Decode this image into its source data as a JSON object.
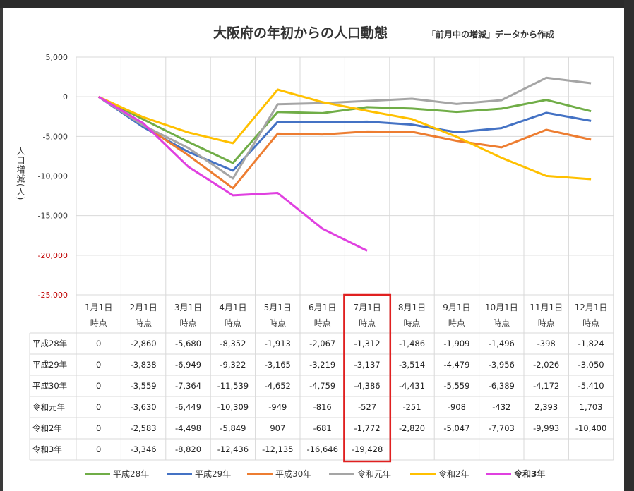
{
  "chart_data": {
    "type": "line",
    "title": "大阪府の年初からの人口動態",
    "subtitle": "「前月中の増減」データから作成",
    "ylabel": "人口増減(人)",
    "xlabel": "",
    "ylim": [
      -25000,
      5000
    ],
    "y_ticks": [
      "5,000",
      "0",
      "-5,000",
      "-10,000",
      "-15,000",
      "-20,000",
      "-25,000"
    ],
    "y_tick_values": [
      5000,
      0,
      -5000,
      -10000,
      -15000,
      -20000,
      -25000
    ],
    "categories": [
      [
        "1月1日",
        "時点"
      ],
      [
        "2月1日",
        "時点"
      ],
      [
        "3月1日",
        "時点"
      ],
      [
        "4月1日",
        "時点"
      ],
      [
        "5月1日",
        "時点"
      ],
      [
        "6月1日",
        "時点"
      ],
      [
        "7月1日",
        "時点"
      ],
      [
        "8月1日",
        "時点"
      ],
      [
        "9月1日",
        "時点"
      ],
      [
        "10月1日",
        "時点"
      ],
      [
        "11月1日",
        "時点"
      ],
      [
        "12月1日",
        "時点"
      ]
    ],
    "grid": true,
    "legend_position": "bottom",
    "highlight_column": 6,
    "highlight_color": "#e02020",
    "series": [
      {
        "name": "平成28年",
        "color": "#70ad47",
        "bold": false,
        "values": [
          0,
          -2860,
          -5680,
          -8352,
          -1913,
          -2067,
          -1312,
          -1486,
          -1909,
          -1496,
          -398,
          -1824
        ],
        "labels": [
          "0",
          "-2,860",
          "-5,680",
          "-8,352",
          "-1,913",
          "-2,067",
          "-1,312",
          "-1,486",
          "-1,909",
          "-1,496",
          "-398",
          "-1,824"
        ]
      },
      {
        "name": "平成29年",
        "color": "#4472c4",
        "bold": false,
        "values": [
          0,
          -3838,
          -6949,
          -9322,
          -3165,
          -3219,
          -3137,
          -3514,
          -4479,
          -3956,
          -2026,
          -3050
        ],
        "labels": [
          "0",
          "-3,838",
          "-6,949",
          "-9,322",
          "-3,165",
          "-3,219",
          "-3,137",
          "-3,514",
          "-4,479",
          "-3,956",
          "-2,026",
          "-3,050"
        ]
      },
      {
        "name": "平成30年",
        "color": "#ed7d31",
        "bold": false,
        "values": [
          0,
          -3559,
          -7364,
          -11539,
          -4652,
          -4759,
          -4386,
          -4431,
          -5559,
          -6389,
          -4172,
          -5410
        ],
        "labels": [
          "0",
          "-3,559",
          "-7,364",
          "-11,539",
          "-4,652",
          "-4,759",
          "-4,386",
          "-4,431",
          "-5,559",
          "-6,389",
          "-4,172",
          "-5,410"
        ]
      },
      {
        "name": "令和元年",
        "color": "#a5a5a5",
        "bold": false,
        "values": [
          0,
          -3630,
          -6449,
          -10309,
          -949,
          -816,
          -527,
          -251,
          -908,
          -432,
          2393,
          1703
        ],
        "labels": [
          "0",
          "-3,630",
          "-6,449",
          "-10,309",
          "-949",
          "-816",
          "-527",
          "-251",
          "-908",
          "-432",
          "2,393",
          "1,703"
        ]
      },
      {
        "name": "令和2年",
        "color": "#ffc000",
        "bold": false,
        "values": [
          0,
          -2583,
          -4498,
          -5849,
          907,
          -681,
          -1772,
          -2820,
          -5047,
          -7703,
          -9993,
          -10400
        ],
        "labels": [
          "0",
          "-2,583",
          "-4,498",
          "-5,849",
          "907",
          "-681",
          "-1,772",
          "-2,820",
          "-5,047",
          "-7,703",
          "-9,993",
          "-10,400"
        ]
      },
      {
        "name": "令和3年",
        "color": "#e040e0",
        "bold": true,
        "values": [
          0,
          -3346,
          -8820,
          -12436,
          -12135,
          -16646,
          -19428,
          null,
          null,
          null,
          null,
          null
        ],
        "labels": [
          "0",
          "-3,346",
          "-8,820",
          "-12,436",
          "-12,135",
          "-16,646",
          "-19,428",
          "",
          "",
          "",
          "",
          ""
        ]
      }
    ]
  }
}
